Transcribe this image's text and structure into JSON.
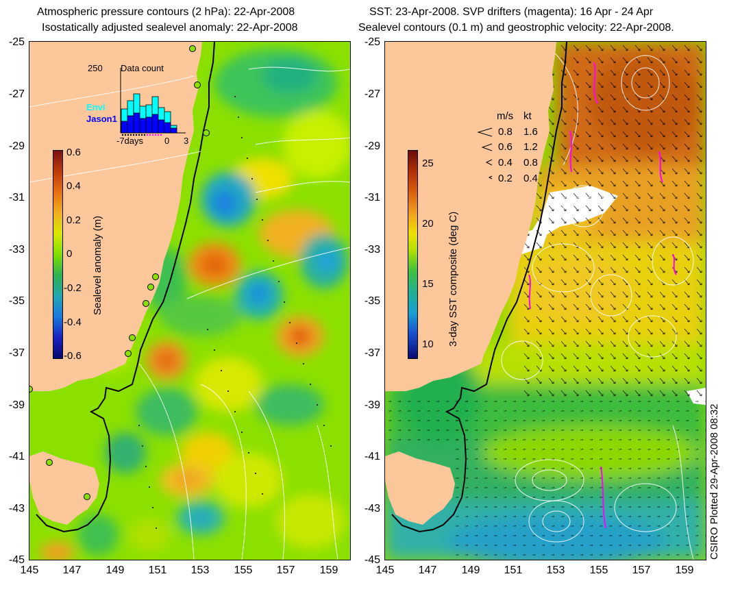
{
  "left_panel": {
    "title_line1": "Atmospheric pressure contours (2 hPa): 22-Apr-2008",
    "title_line2": "Isostatically adjusted sealevel anomaly: 22-Apr-2008",
    "colorbar": {
      "label": "Sealevel anomaly (m)",
      "ticks": [
        "0.6",
        "0.4",
        "0.2",
        "0",
        "-0.2",
        "-0.4",
        "-0.6"
      ]
    },
    "histogram": {
      "count_max": "250",
      "title": "Data count",
      "series": [
        {
          "name": "Envi",
          "color": "#00ffff"
        },
        {
          "name": "Jason1",
          "color": "#0000ff"
        }
      ],
      "x_ticks": [
        "-7days",
        "0",
        "3"
      ]
    }
  },
  "right_panel": {
    "title_line1": "SST: 23-Apr-2008. SVP drifters (magenta): 16 Apr - 24 Apr",
    "title_line2": "Sealevel contours (0.1 m) and geostrophic velocity: 22-Apr-2008.",
    "colorbar": {
      "label": "3-day SST composite (deg C)",
      "ticks": [
        "25",
        "20",
        "15",
        "10"
      ]
    },
    "velocity_legend": {
      "header_ms": "m/s",
      "header_kt": "kt",
      "rows": [
        {
          "ms": "0.8",
          "kt": "1.6"
        },
        {
          "ms": "0.6",
          "kt": "1.2"
        },
        {
          "ms": "0.4",
          "kt": "0.8"
        },
        {
          "ms": "0.2",
          "kt": "0.4"
        }
      ]
    }
  },
  "axes": {
    "y_ticks": [
      "-25",
      "-27",
      "-29",
      "-31",
      "-33",
      "-35",
      "-37",
      "-39",
      "-41",
      "-43",
      "-45"
    ],
    "x_ticks": [
      "145",
      "147",
      "149",
      "151",
      "153",
      "155",
      "157",
      "159"
    ]
  },
  "credit": "CSIRO Plotted 29-Apr-2008 08:32",
  "colors": {
    "land": "#fcc89b",
    "sla_mid": "#7fe000",
    "sst_warm": "#d9731a",
    "drifter": "#ff00ff"
  }
}
